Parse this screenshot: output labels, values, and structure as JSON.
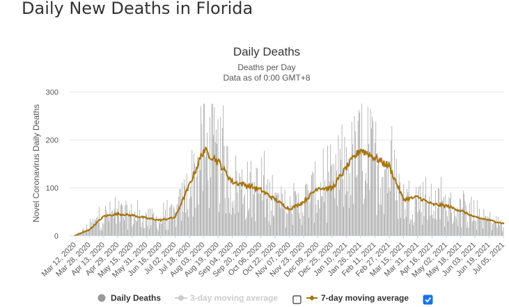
{
  "page": {
    "heading": "Daily New Deaths in Florida"
  },
  "chart_data": {
    "type": "bar",
    "title": "Daily Deaths",
    "subtitle_1": "Deaths per Day",
    "subtitle_2": "Data as of 0:00 GMT+8",
    "ylabel": "Novel Coronavirus Daily Deaths",
    "xlabel": "",
    "ylim": [
      0,
      300
    ],
    "yticks": [
      0,
      100,
      200,
      300
    ],
    "grid": true,
    "legend_position": "bottom",
    "x_start": "2020-03-12",
    "x_end": "2021-07-13",
    "x_tick_labels": [
      "Mar 12, 2020",
      "Mar 28, 2020",
      "Apr 13, 2020",
      "Apr 29, 2020",
      "May 15, 2020",
      "May 31, 2020",
      "Jun 16, 2020",
      "Jul 02, 2020",
      "Jul 18, 2020",
      "Aug 03, 2020",
      "Aug 19, 2020",
      "Sep 04, 2020",
      "Sep 20, 2020",
      "Oct 06, 2020",
      "Oct 22, 2020",
      "Nov 07, 2020",
      "Nov 23, 2020",
      "Dec 09, 2020",
      "Dec 25, 2020",
      "Jan 10, 2021",
      "Jan 26, 2021",
      "Feb 11, 2021",
      "Feb 27, 2021",
      "Mar 15, 2021",
      "Mar 31, 2021",
      "Apr 16, 2021",
      "May 02, 2021",
      "May 18, 2021",
      "Jun 03, 2021",
      "Jun 19, 2021",
      "Jul 05, 2021"
    ],
    "series": [
      {
        "name": "Daily Deaths",
        "type": "bar",
        "color": "#999999",
        "note": "approx. values read at each date tick",
        "x": [
          "Mar 12, 2020",
          "Mar 28, 2020",
          "Apr 13, 2020",
          "Apr 29, 2020",
          "May 15, 2020",
          "May 31, 2020",
          "Jun 16, 2020",
          "Jul 02, 2020",
          "Jul 18, 2020",
          "Aug 03, 2020",
          "Aug 19, 2020",
          "Sep 04, 2020",
          "Sep 20, 2020",
          "Oct 06, 2020",
          "Oct 22, 2020",
          "Nov 07, 2020",
          "Nov 23, 2020",
          "Dec 09, 2020",
          "Dec 25, 2020",
          "Jan 10, 2021",
          "Jan 26, 2021",
          "Feb 11, 2021",
          "Feb 27, 2021",
          "Mar 15, 2021",
          "Mar 31, 2021",
          "Apr 16, 2021",
          "May 02, 2021",
          "May 18, 2021",
          "Jun 03, 2021",
          "Jun 19, 2021",
          "Jul 05, 2021"
        ],
        "values": [
          0,
          20,
          45,
          50,
          45,
          38,
          35,
          45,
          110,
          190,
          170,
          120,
          105,
          100,
          75,
          60,
          75,
          105,
          100,
          150,
          185,
          170,
          150,
          80,
          85,
          70,
          65,
          55,
          40,
          35,
          25
        ]
      },
      {
        "name": "3-day moving average",
        "type": "line",
        "color": "#cccccc",
        "visible": false
      },
      {
        "name": "7-day moving average",
        "type": "line",
        "color": "#a6740e",
        "visible": true,
        "x": [
          "Mar 12, 2020",
          "Mar 28, 2020",
          "Apr 13, 2020",
          "Apr 29, 2020",
          "May 15, 2020",
          "May 31, 2020",
          "Jun 16, 2020",
          "Jul 02, 2020",
          "Jul 18, 2020",
          "Aug 03, 2020",
          "Aug 19, 2020",
          "Sep 04, 2020",
          "Sep 20, 2020",
          "Oct 06, 2020",
          "Oct 22, 2020",
          "Nov 07, 2020",
          "Nov 23, 2020",
          "Dec 09, 2020",
          "Dec 25, 2020",
          "Jan 10, 2021",
          "Jan 26, 2021",
          "Feb 11, 2021",
          "Feb 27, 2021",
          "Mar 15, 2021",
          "Mar 31, 2021",
          "Apr 16, 2021",
          "May 02, 2021",
          "May 18, 2021",
          "Jun 03, 2021",
          "Jun 19, 2021",
          "Jul 05, 2021"
        ],
        "values": [
          0,
          12,
          40,
          45,
          42,
          36,
          32,
          38,
          105,
          178,
          155,
          112,
          105,
          95,
          75,
          55,
          70,
          100,
          98,
          142,
          180,
          162,
          145,
          75,
          80,
          65,
          62,
          52,
          38,
          32,
          25
        ]
      }
    ],
    "legend": [
      {
        "label": "Daily Deaths",
        "enabled": true,
        "checkbox": false
      },
      {
        "label": "3-day moving average",
        "enabled": false,
        "checkbox": true,
        "checked": false
      },
      {
        "label": "7-day moving average",
        "enabled": true,
        "checkbox": true,
        "checked": true
      }
    ]
  }
}
